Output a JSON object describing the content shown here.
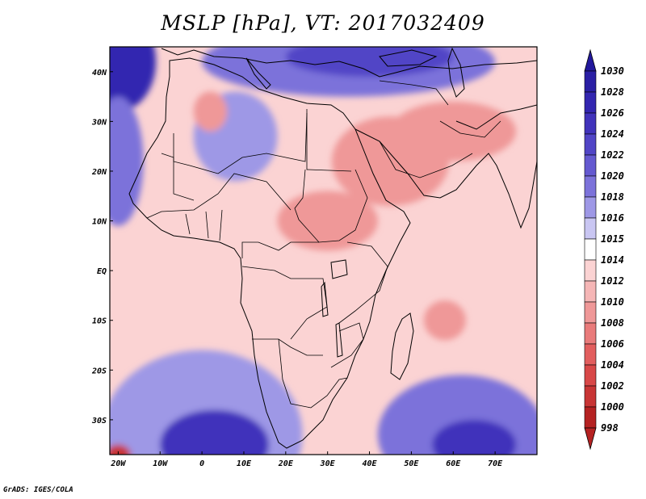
{
  "title": "MSLP [hPa], VT: 2017032409",
  "credit": "GrADS: IGES/COLA",
  "map": {
    "lon_range": [
      -22,
      80
    ],
    "lat_range": [
      -37,
      45
    ],
    "x_ticks": [
      {
        "value": -20,
        "label": "20W"
      },
      {
        "value": -10,
        "label": "10W"
      },
      {
        "value": 0,
        "label": "0"
      },
      {
        "value": 10,
        "label": "10E"
      },
      {
        "value": 20,
        "label": "20E"
      },
      {
        "value": 30,
        "label": "30E"
      },
      {
        "value": 40,
        "label": "40E"
      },
      {
        "value": 50,
        "label": "50E"
      },
      {
        "value": 60,
        "label": "60E"
      },
      {
        "value": 70,
        "label": "70E"
      }
    ],
    "y_ticks": [
      {
        "value": 40,
        "label": "40N"
      },
      {
        "value": 30,
        "label": "30N"
      },
      {
        "value": 20,
        "label": "20N"
      },
      {
        "value": 10,
        "label": "10N"
      },
      {
        "value": 0,
        "label": "EQ"
      },
      {
        "value": -10,
        "label": "10S"
      },
      {
        "value": -20,
        "label": "20S"
      },
      {
        "value": -30,
        "label": "30S"
      }
    ],
    "background_color": "#fbd3d3",
    "pressure_cells": [
      {
        "name": "north-high-atlantic",
        "lon": -20,
        "lat": 42,
        "rx": 9,
        "ry": 10,
        "level": "1026"
      },
      {
        "name": "north-high-med",
        "lon": 35,
        "lat": 42,
        "rx": 35,
        "ry": 7,
        "level": "1018"
      },
      {
        "name": "north-high-core",
        "lon": 40,
        "lat": 43,
        "rx": 20,
        "ry": 4,
        "level": "1022"
      },
      {
        "name": "sahara-high",
        "lon": 8,
        "lat": 27,
        "rx": 10,
        "ry": 9,
        "level": "1016"
      },
      {
        "name": "west-africa-high",
        "lon": -20,
        "lat": 22,
        "rx": 6,
        "ry": 13,
        "level": "1018"
      },
      {
        "name": "south-atlantic-high",
        "lon": 0,
        "lat": -33,
        "rx": 24,
        "ry": 17,
        "level": "1016"
      },
      {
        "name": "south-atlantic-core",
        "lon": 3,
        "lat": -35,
        "rx": 13,
        "ry": 7,
        "level": "1024"
      },
      {
        "name": "south-indian-high",
        "lon": 62,
        "lat": -33,
        "rx": 20,
        "ry": 12,
        "level": "1018"
      },
      {
        "name": "south-indian-core",
        "lon": 65,
        "lat": -35,
        "rx": 10,
        "ry": 5,
        "level": "1024"
      },
      {
        "name": "algeria-low",
        "lon": 2,
        "lat": 32,
        "rx": 4,
        "ry": 4,
        "level": "1008"
      },
      {
        "name": "arabia-low",
        "lon": 45,
        "lat": 22,
        "rx": 14,
        "ry": 9,
        "level": "1008"
      },
      {
        "name": "iran-low",
        "lon": 60,
        "lat": 28,
        "rx": 15,
        "ry": 6,
        "level": "1008"
      },
      {
        "name": "sahel-low",
        "lon": 30,
        "lat": 10,
        "rx": 12,
        "ry": 6,
        "level": "1008"
      },
      {
        "name": "indian-ocean-low",
        "lon": 58,
        "lat": -10,
        "rx": 5,
        "ry": 4,
        "level": "1008"
      },
      {
        "name": "south-west-low",
        "lon": -20,
        "lat": -37,
        "rx": 3,
        "ry": 2,
        "level": "1000"
      }
    ]
  },
  "colorbar": {
    "levels": [
      "1030",
      "1028",
      "1026",
      "1024",
      "1022",
      "1020",
      "1018",
      "1016",
      "1015",
      "1014",
      "1012",
      "1010",
      "1008",
      "1006",
      "1004",
      "1002",
      "1000",
      "998"
    ],
    "colors": {
      "above_1030": "#22189c",
      "1028": "#2a1fa4",
      "1026": "#3326b0",
      "1024": "#4133bb",
      "1022": "#5145c6",
      "1020": "#6459d0",
      "1018": "#7c72da",
      "1016": "#9e98e6",
      "1015": "#c9c6f2",
      "1014": "#ffffff",
      "1012": "#fbd3d3",
      "1010": "#f5b6b6",
      "1008": "#ef9898",
      "1006": "#e97b7b",
      "1004": "#e25e5e",
      "1002": "#d84848",
      "1000": "#c83535",
      "998": "#b52222"
    }
  }
}
